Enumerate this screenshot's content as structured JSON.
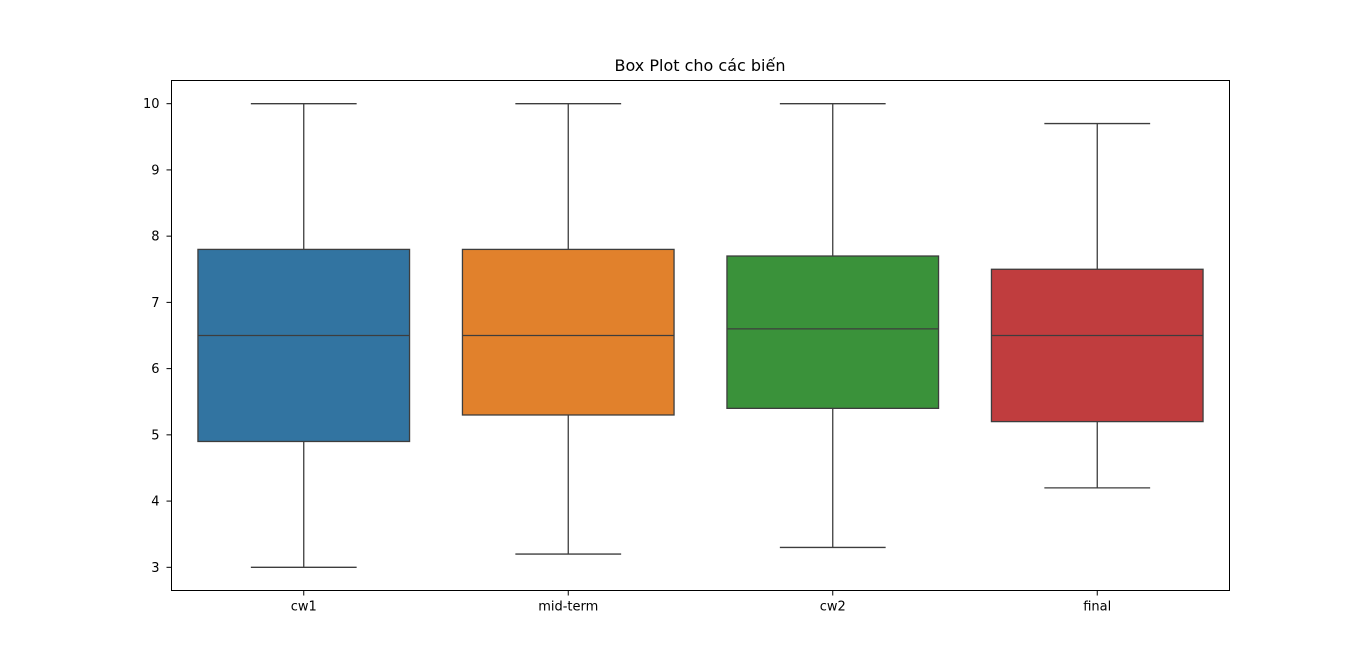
{
  "chart_data": {
    "type": "box",
    "title": "Box Plot cho các biến",
    "xlabel": "",
    "ylabel": "",
    "categories": [
      "cw1",
      "mid-term",
      "cw2",
      "final"
    ],
    "series": [
      {
        "category": "cw1",
        "min": 3.0,
        "q1": 4.9,
        "median": 6.5,
        "q3": 7.8,
        "max": 10.0,
        "color": "#3274a1"
      },
      {
        "category": "mid-term",
        "min": 3.2,
        "q1": 5.3,
        "median": 6.5,
        "q3": 7.8,
        "max": 10.0,
        "color": "#e1812c"
      },
      {
        "category": "cw2",
        "min": 3.3,
        "q1": 5.4,
        "median": 6.6,
        "q3": 7.7,
        "max": 10.0,
        "color": "#3a923a"
      },
      {
        "category": "final",
        "min": 4.2,
        "q1": 5.2,
        "median": 6.5,
        "q3": 7.5,
        "max": 9.7,
        "color": "#c03d3e"
      }
    ],
    "y_ticks": [
      "3",
      "4",
      "5",
      "6",
      "7",
      "8",
      "9",
      "10"
    ],
    "ylim": [
      2.65,
      10.35
    ],
    "grid": false,
    "legend": "none",
    "line_color": "#3d3d3d"
  }
}
